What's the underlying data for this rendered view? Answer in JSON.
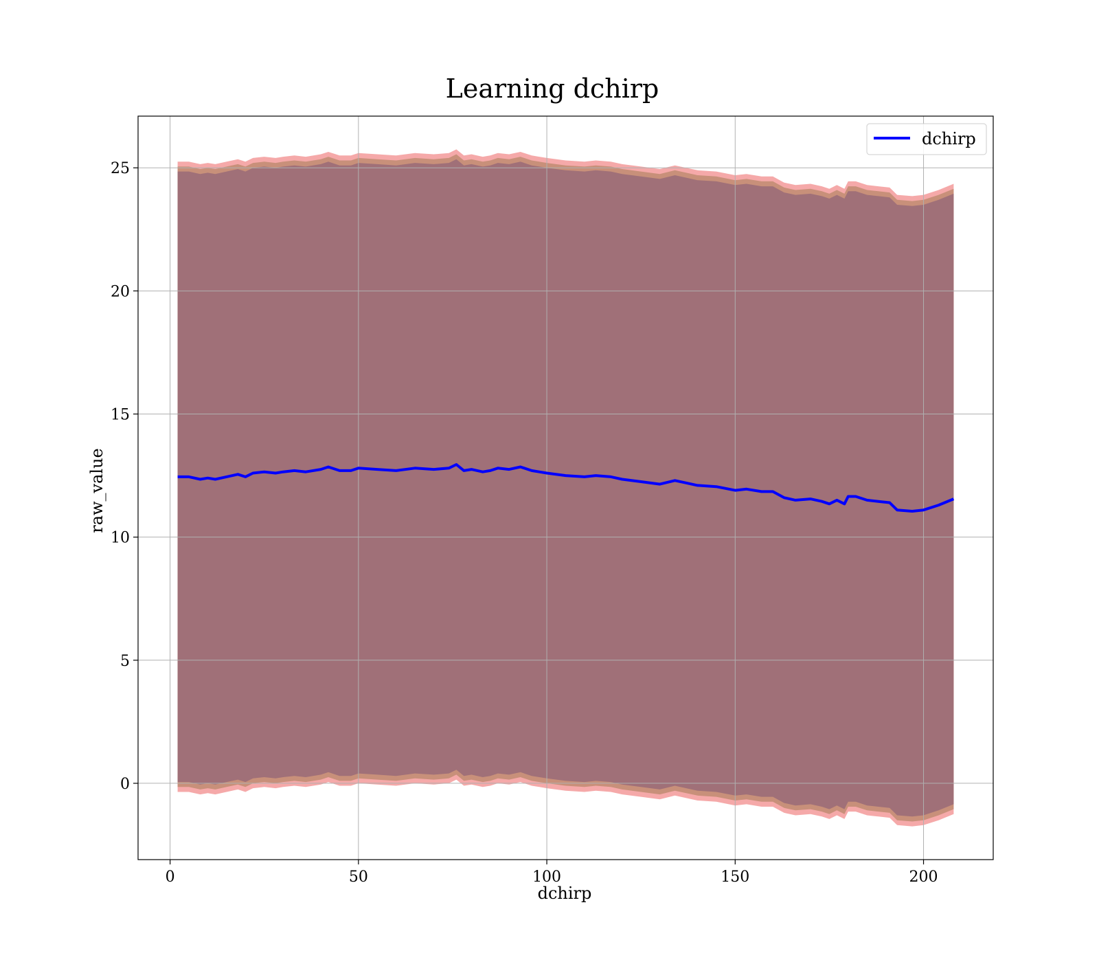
{
  "chart_data": {
    "type": "line",
    "title": "Learning dchirp",
    "xlabel": "dchirp",
    "ylabel": "raw_value",
    "xlim": [
      -8.5,
      218.5
    ],
    "ylim": [
      -3.1,
      27.1
    ],
    "xticks": [
      0,
      50,
      100,
      150,
      200
    ],
    "yticks": [
      0,
      5,
      10,
      15,
      20,
      25
    ],
    "grid": true,
    "legend_position": "top-right",
    "colors": {
      "line": "#0000ff",
      "band_outer": "#f4a0a0",
      "band_mid": "#c8907a",
      "band_inner": "#a07078",
      "grid": "#b0b0b0"
    },
    "series": [
      {
        "name": "dchirp",
        "x": [
          2,
          5,
          8,
          10,
          12,
          15,
          18,
          20,
          22,
          25,
          28,
          30,
          33,
          36,
          40,
          42,
          45,
          48,
          50,
          55,
          60,
          65,
          70,
          74,
          76,
          78,
          80,
          83,
          85,
          87,
          90,
          93,
          96,
          98,
          100,
          105,
          110,
          113,
          117,
          120,
          125,
          130,
          134,
          137,
          140,
          145,
          150,
          153,
          157,
          160,
          163,
          166,
          170,
          173,
          175,
          177,
          179,
          180,
          182,
          185,
          188,
          191,
          193,
          197,
          200,
          204,
          208
        ],
        "y": [
          12.45,
          12.45,
          12.35,
          12.4,
          12.35,
          12.45,
          12.55,
          12.45,
          12.6,
          12.65,
          12.6,
          12.65,
          12.7,
          12.65,
          12.75,
          12.85,
          12.7,
          12.7,
          12.8,
          12.75,
          12.7,
          12.8,
          12.75,
          12.8,
          12.95,
          12.7,
          12.75,
          12.65,
          12.7,
          12.8,
          12.75,
          12.85,
          12.7,
          12.65,
          12.6,
          12.5,
          12.45,
          12.5,
          12.45,
          12.35,
          12.25,
          12.15,
          12.3,
          12.2,
          12.1,
          12.05,
          11.9,
          11.95,
          11.85,
          11.85,
          11.6,
          11.5,
          11.55,
          11.45,
          11.35,
          11.5,
          11.35,
          11.65,
          11.65,
          11.5,
          11.45,
          11.4,
          11.1,
          11.05,
          11.1,
          11.3,
          11.55
        ]
      }
    ],
    "band_half_widths": {
      "inner": 12.4,
      "mid": 12.6,
      "outer": 12.8
    }
  }
}
